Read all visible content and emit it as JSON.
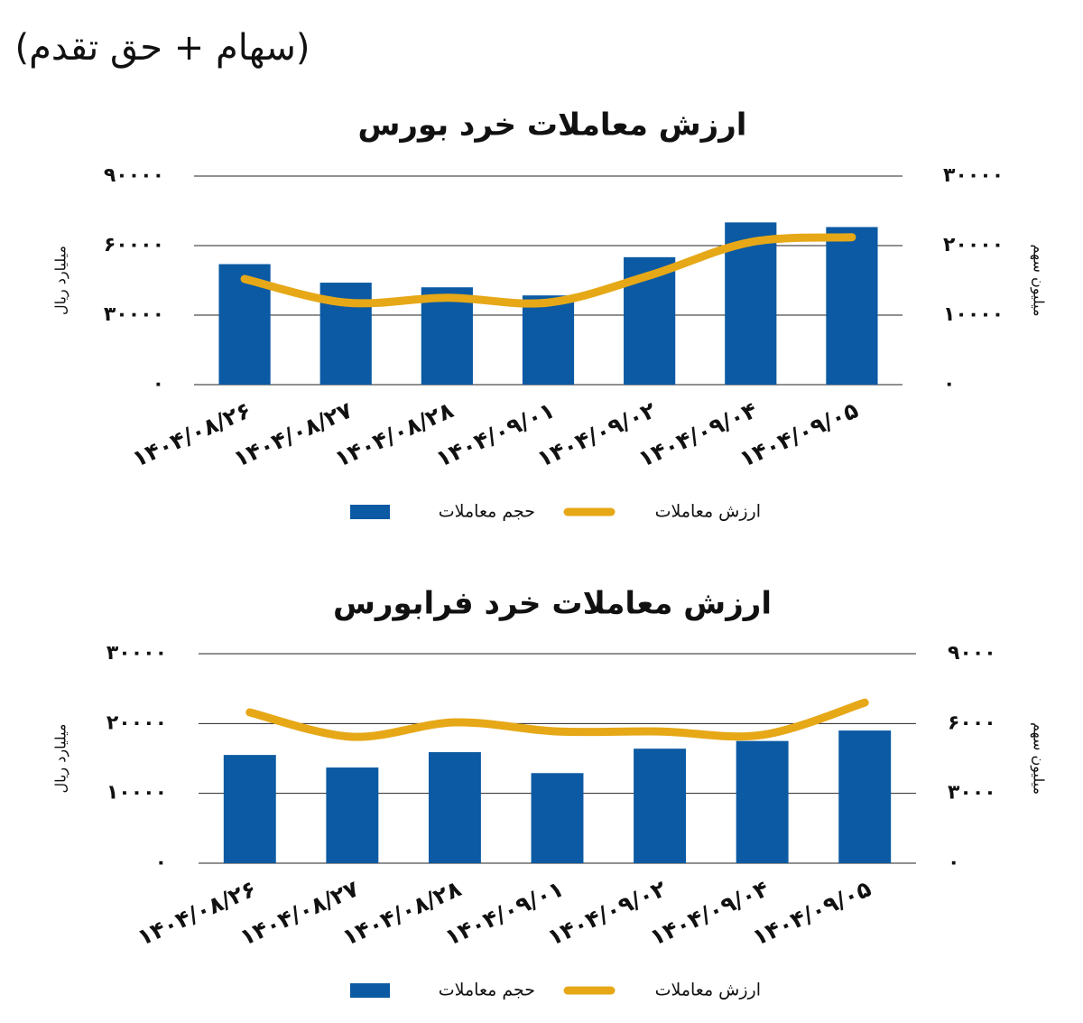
{
  "header": {
    "text": "(سهام + حق تقدم)"
  },
  "chart_data": [
    {
      "type": "bar",
      "title": "ارزش معاملات خرد بورس",
      "categories": [
        "۱۴۰۴/۰۸/۲۶",
        "۱۴۰۴/۰۸/۲۷",
        "۱۴۰۴/۰۸/۲۸",
        "۱۴۰۴/۰۹/۰۱",
        "۱۴۰۴/۰۹/۰۲",
        "۱۴۰۴/۰۹/۰۴",
        "۱۴۰۴/۰۹/۰۵"
      ],
      "ylabel": "میلیارد ریال",
      "y2label": "میلیون سهم",
      "ylim": [
        0,
        90000
      ],
      "yticks": [
        {
          "value": 0,
          "label": "۰"
        },
        {
          "value": 30000,
          "label": "۳۰۰۰۰"
        },
        {
          "value": 60000,
          "label": "۶۰۰۰۰"
        },
        {
          "value": 90000,
          "label": "۹۰۰۰۰"
        }
      ],
      "y2lim": [
        0,
        30000
      ],
      "y2ticks": [
        {
          "value": 0,
          "label": "۰"
        },
        {
          "value": 10000,
          "label": "۱۰۰۰۰"
        },
        {
          "value": 20000,
          "label": "۲۰۰۰۰"
        },
        {
          "value": 30000,
          "label": "۳۰۰۰۰"
        }
      ],
      "grid": true,
      "legend": "bottom",
      "series": [
        {
          "name": "حجم معاملات",
          "type": "bar",
          "color": "#0b5aa3",
          "values": [
            52000,
            44000,
            42000,
            38500,
            55000,
            70000,
            68000
          ]
        },
        {
          "name": "ارزش معاملات",
          "type": "line",
          "axis": "y2",
          "color": "#e6a817",
          "values": [
            15200,
            11800,
            12500,
            11800,
            15700,
            20500,
            21200
          ]
        }
      ]
    },
    {
      "type": "bar",
      "title": "ارزش معاملات خرد فرابورس",
      "categories": [
        "۱۴۰۴/۰۸/۲۶",
        "۱۴۰۴/۰۸/۲۷",
        "۱۴۰۴/۰۸/۲۸",
        "۱۴۰۴/۰۹/۰۱",
        "۱۴۰۴/۰۹/۰۲",
        "۱۴۰۴/۰۹/۰۴",
        "۱۴۰۴/۰۹/۰۵"
      ],
      "ylabel": "میلیارد ریال",
      "y2label": "میلیون سهم",
      "ylim": [
        0,
        30000
      ],
      "yticks": [
        {
          "value": 0,
          "label": "۰"
        },
        {
          "value": 10000,
          "label": "۱۰۰۰۰"
        },
        {
          "value": 20000,
          "label": "۲۰۰۰۰"
        },
        {
          "value": 30000,
          "label": "۳۰۰۰۰"
        }
      ],
      "y2lim": [
        0,
        9000
      ],
      "y2ticks": [
        {
          "value": 0,
          "label": "۰"
        },
        {
          "value": 3000,
          "label": "۳۰۰۰"
        },
        {
          "value": 6000,
          "label": "۶۰۰۰"
        },
        {
          "value": 9000,
          "label": "۹۰۰۰"
        }
      ],
      "grid": true,
      "legend": "bottom",
      "series": [
        {
          "name": "حجم معاملات",
          "type": "bar",
          "color": "#0b5aa3",
          "values": [
            15500,
            13700,
            15900,
            12900,
            16400,
            17500,
            19000
          ]
        },
        {
          "name": "ارزش معاملات",
          "type": "line",
          "axis": "y2",
          "color": "#e6a817",
          "values": [
            6480,
            5430,
            6050,
            5660,
            5660,
            5510,
            6900
          ]
        }
      ]
    }
  ]
}
